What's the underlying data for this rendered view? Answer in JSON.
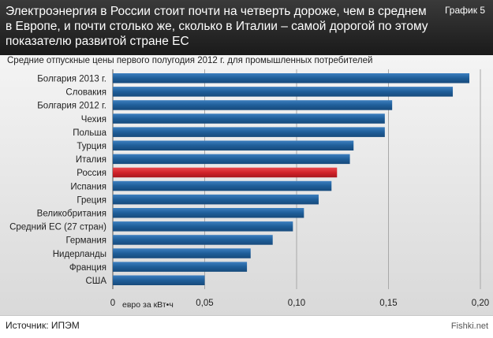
{
  "header": {
    "title": "Электроэнергия в России стоит почти на четверть дороже, чем в среднем в Европе, и почти столько же, сколько в Италии – самой дорогой по этому показателю развитой стране ЕС",
    "chart_number": "График 5"
  },
  "footer": {
    "source": "Источник: ИПЭМ",
    "watermark": "Fishki.net"
  },
  "colors": {
    "bar": "#1f5e99",
    "highlight": "#d2232a"
  },
  "chart_data": {
    "type": "bar",
    "orientation": "horizontal",
    "title": "Средние отпускные цены первого полугодия 2012 г. для промышленных потребителей",
    "xlabel": "евро за кВт•ч",
    "ylabel": "",
    "xlim": [
      0,
      0.2
    ],
    "grid": true,
    "ticks": [
      "0",
      "0,05",
      "0,10",
      "0,15",
      "0,20"
    ],
    "tick_values": [
      0,
      0.05,
      0.1,
      0.15,
      0.2
    ],
    "categories": [
      "Болгария 2013 г.",
      "Словакия",
      "Болгария 2012 г.",
      "Чехия",
      "Польша",
      "Турция",
      "Италия",
      "Россия",
      "Испания",
      "Греция",
      "Великобритания",
      "Средний ЕС (27 стран)",
      "Германия",
      "Нидерланды",
      "Франция",
      "США"
    ],
    "values": [
      0.194,
      0.185,
      0.152,
      0.148,
      0.148,
      0.131,
      0.129,
      0.122,
      0.119,
      0.112,
      0.104,
      0.098,
      0.087,
      0.075,
      0.073,
      0.05
    ],
    "highlight": "Россия"
  }
}
